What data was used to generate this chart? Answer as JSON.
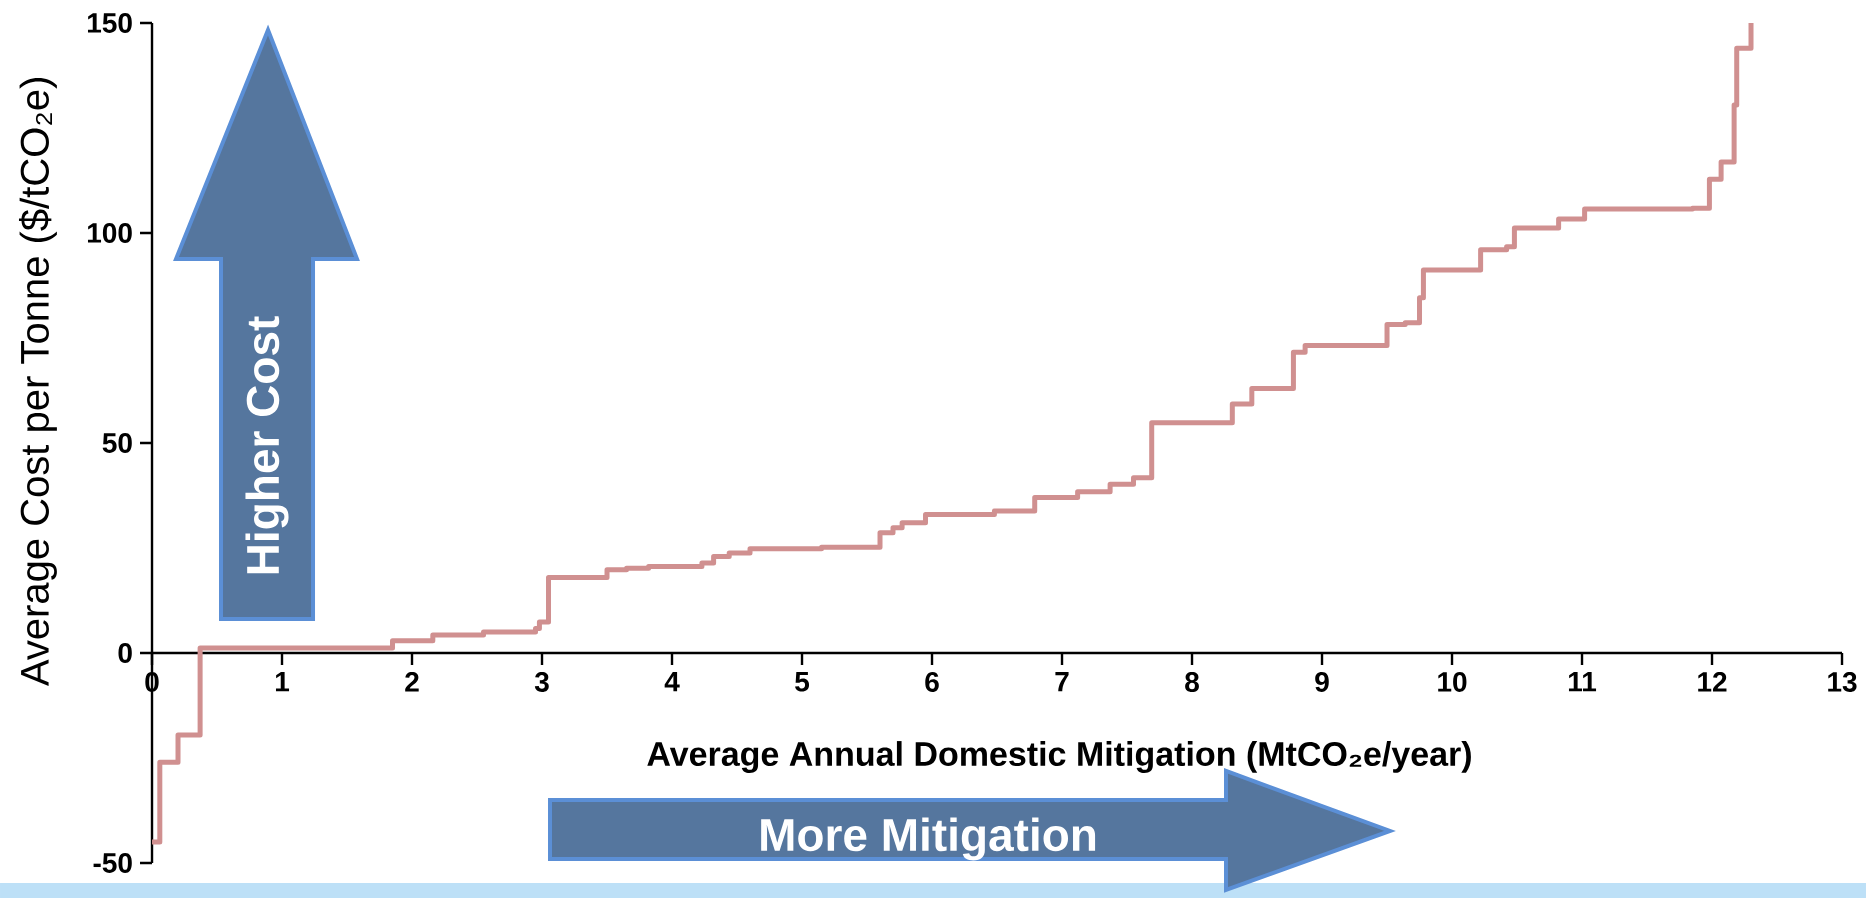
{
  "chart_data": {
    "type": "step",
    "xlabel": "Average Annual Domestic Mitigation (MtCO₂e/year)",
    "ylabel": "Average Cost per Tonne ($/tCO₂e)",
    "x": [
      0,
      0.06,
      0.2,
      0.37,
      1.85,
      2.16,
      2.55,
      2.95,
      2.98,
      3.05,
      3.5,
      3.65,
      3.82,
      4.23,
      4.32,
      4.44,
      4.6,
      5.15,
      5.6,
      5.7,
      5.77,
      5.95,
      6.48,
      6.79,
      7.12,
      7.37,
      7.55,
      7.69,
      8.31,
      8.46,
      8.78,
      8.87,
      9.5,
      9.64,
      9.75,
      9.78,
      10.22,
      10.42,
      10.48,
      10.82,
      11.02,
      11.85,
      11.98,
      12.07,
      12.17,
      12.19,
      12.3
    ],
    "values": [
      -45,
      -26,
      -19.5,
      1.2,
      2.9,
      4.3,
      5,
      5.8,
      7.4,
      18,
      19.8,
      20.2,
      20.6,
      21.4,
      23,
      23.8,
      24.8,
      25.2,
      28.6,
      29.8,
      31,
      33,
      33.8,
      37,
      38.4,
      40.2,
      41.7,
      54.8,
      59.3,
      63,
      71.6,
      73.2,
      78.2,
      78.6,
      84.6,
      91.2,
      96,
      96.7,
      101.2,
      103.3,
      105.7,
      105.9,
      112.8,
      116.9,
      130.5,
      144,
      150
    ],
    "color": "#d09090",
    "line_style": "solid",
    "marker": "none",
    "xlim": [
      0,
      13
    ],
    "ylim": [
      -50,
      150
    ],
    "xticks": [
      0,
      1,
      2,
      3,
      4,
      5,
      6,
      7,
      8,
      9,
      10,
      11,
      12,
      13
    ],
    "yticks": [
      -50,
      0,
      50,
      100,
      150
    ],
    "grid": false,
    "annotations": [
      "Higher Cost",
      "More Mitigation"
    ]
  }
}
